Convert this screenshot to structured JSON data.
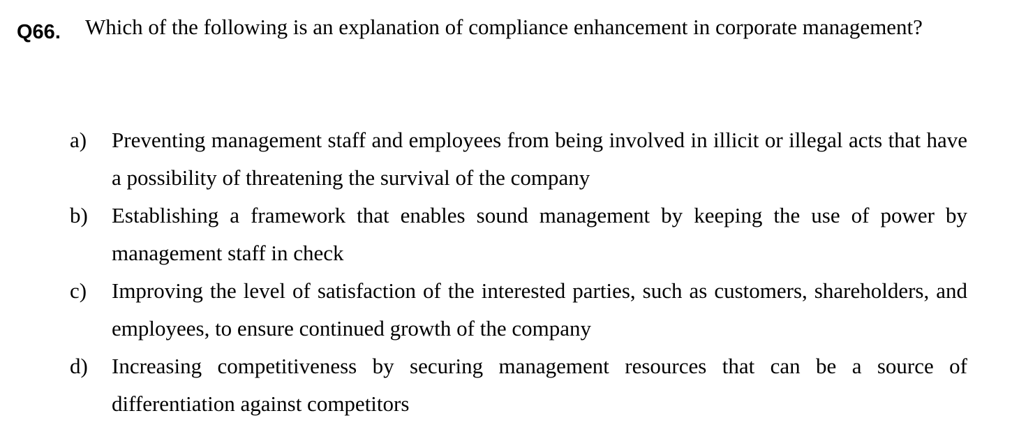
{
  "question": {
    "number": "Q66.",
    "text": "Which of the following is an explanation of compliance enhancement in corporate management?"
  },
  "options": [
    {
      "letter": "a)",
      "text": "Preventing management staff and employees from being involved in illicit or illegal acts that have a possibility of threatening the survival of the company"
    },
    {
      "letter": "b)",
      "text": "Establishing a framework that enables sound management by keeping the use of power by management staff in check"
    },
    {
      "letter": "c)",
      "text": "Improving the level of satisfaction of the interested parties, such as customers, shareholders, and employees, to ensure continued growth of the company"
    },
    {
      "letter": "d)",
      "text": "Increasing competitiveness by securing management resources that can be a source of differentiation against competitors"
    }
  ]
}
